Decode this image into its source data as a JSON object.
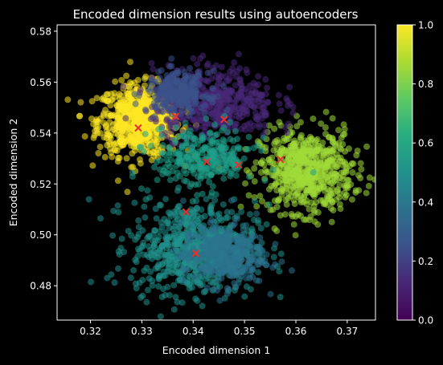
{
  "chart_data": {
    "type": "scatter",
    "title": "Encoded dimension results using autoencoders",
    "xlabel": "Encoded dimension 1",
    "ylabel": "Encoded dimension 2",
    "xlim": [
      0.3135,
      0.3755
    ],
    "ylim": [
      0.4665,
      0.5825
    ],
    "xticks": [
      "0.32",
      "0.33",
      "0.34",
      "0.35",
      "0.36",
      "0.37"
    ],
    "xtick_values": [
      0.32,
      0.33,
      0.34,
      0.35,
      0.36,
      0.37
    ],
    "yticks": [
      "0.48",
      "0.50",
      "0.52",
      "0.54",
      "0.56",
      "0.58"
    ],
    "ytick_values": [
      0.48,
      0.5,
      0.52,
      0.54,
      0.56,
      0.58
    ],
    "colormap": "viridis",
    "colorbar": {
      "range": [
        0.0,
        1.0
      ],
      "ticks": [
        "0.0",
        "0.2",
        "0.4",
        "0.6",
        "0.8",
        "1.0"
      ],
      "tick_values": [
        0.0,
        0.2,
        0.4,
        0.6,
        0.8,
        1.0
      ]
    },
    "grid": false,
    "clusters": [
      {
        "value": 1.0,
        "color": "#fde725",
        "center": [
          0.3295,
          0.545
        ],
        "spread": [
          0.004,
          0.007
        ]
      },
      {
        "value": 0.85,
        "color": "#a0da39",
        "center": [
          0.362,
          0.525
        ],
        "spread": [
          0.0045,
          0.008
        ]
      },
      {
        "value": 0.5,
        "color": "#21918c",
        "center": [
          0.34,
          0.495
        ],
        "spread": [
          0.006,
          0.009
        ]
      },
      {
        "value": 0.38,
        "color": "#2c728e",
        "center": [
          0.346,
          0.492
        ],
        "spread": [
          0.004,
          0.006
        ]
      },
      {
        "value": 0.12,
        "color": "#482878",
        "center": [
          0.344,
          0.552
        ],
        "spread": [
          0.006,
          0.007
        ]
      },
      {
        "value": 0.25,
        "color": "#3b528b",
        "center": [
          0.337,
          0.556
        ],
        "spread": [
          0.003,
          0.004
        ]
      },
      {
        "value": 0.55,
        "color": "#1f9e89",
        "center": [
          0.342,
          0.53
        ],
        "spread": [
          0.005,
          0.006
        ]
      }
    ],
    "centroids": [
      {
        "x": 0.3293,
        "y": 0.542
      },
      {
        "x": 0.3366,
        "y": 0.5465
      },
      {
        "x": 0.346,
        "y": 0.5453
      },
      {
        "x": 0.3426,
        "y": 0.5287
      },
      {
        "x": 0.3488,
        "y": 0.5275
      },
      {
        "x": 0.357,
        "y": 0.5296
      },
      {
        "x": 0.3386,
        "y": 0.509
      },
      {
        "x": 0.3405,
        "y": 0.4927
      }
    ],
    "centroid_color": "#e6312e"
  }
}
